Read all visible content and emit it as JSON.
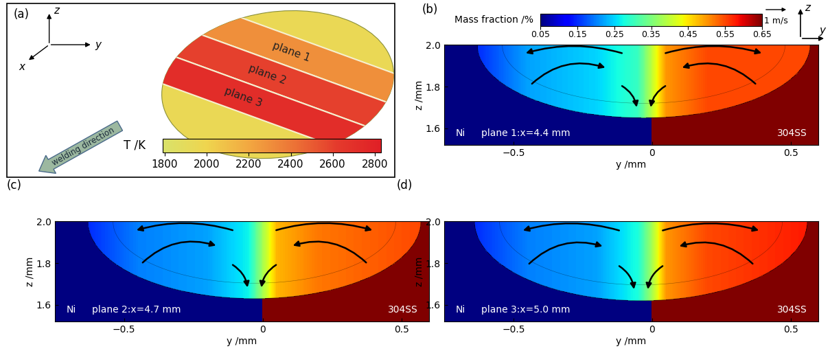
{
  "chart_data": [
    {
      "type": "render",
      "panel": "(a)",
      "axis_names": [
        "x",
        "y",
        "z"
      ],
      "surface_T": 1950,
      "planes": [
        {
          "name": "plane 1",
          "T": 2300
        },
        {
          "name": "plane 2",
          "T": 2600
        },
        {
          "name": "plane 3",
          "T": 2720
        }
      ],
      "annotation": "welding direction",
      "colorbar": {
        "label": "T /K",
        "range": [
          1790,
          2830
        ],
        "ticks": [
          1800,
          2000,
          2200,
          2400,
          2600,
          2800
        ]
      }
    },
    {
      "type": "field",
      "panel": "(b)",
      "left_label": "Ni",
      "section": "plane 1:x=4.4 mm",
      "right_label": "304SS",
      "xlabel": "y /mm",
      "ylabel": "z /mm",
      "xlim": [
        -0.75,
        0.6
      ],
      "ylim": [
        1.52,
        2.0
      ],
      "xticks": [
        {
          "value": -0.5,
          "label": "−0.5"
        },
        0,
        0.5
      ],
      "yticks": [
        1.6,
        1.8,
        2.0
      ],
      "axis_names": [
        "z",
        "y"
      ],
      "colorbar": {
        "label": "Mass fraction /%",
        "range": [
          0.05,
          0.65
        ],
        "ticks": [
          0.05,
          0.15,
          0.25,
          0.35,
          0.45,
          0.55,
          0.65
        ]
      },
      "reference_vector": {
        "label": "1 m/s",
        "value": 1
      },
      "base_values": [
        0.05,
        0.65
      ],
      "pool": {
        "y_left": -0.63,
        "y_right": 0.57,
        "z_bottom": 1.65
      },
      "profile": {
        "y": [
          -0.63,
          -0.45,
          -0.2,
          -0.05,
          0.0,
          0.05,
          0.2,
          0.57
        ],
        "values": [
          0.15,
          0.22,
          0.25,
          0.3,
          0.4,
          0.5,
          0.55,
          0.55
        ]
      }
    },
    {
      "type": "field",
      "panel": "(c)",
      "left_label": "Ni",
      "section": "plane 2:x=4.7 mm",
      "right_label": "304SS",
      "xlabel": "y /mm",
      "ylabel": "z /mm",
      "xlim": [
        -0.75,
        0.6
      ],
      "ylim": [
        1.52,
        2.0
      ],
      "xticks": [
        {
          "value": -0.5,
          "label": "−0.5"
        },
        0,
        0.5
      ],
      "yticks": [
        1.6,
        1.8,
        2.0
      ],
      "base_values": [
        0.05,
        0.65
      ],
      "pool": {
        "y_left": -0.63,
        "y_right": 0.57,
        "z_bottom": 1.63
      },
      "profile": {
        "y": [
          -0.63,
          -0.45,
          -0.2,
          -0.05,
          0.0,
          0.05,
          0.2,
          0.57
        ],
        "values": [
          0.15,
          0.2,
          0.22,
          0.27,
          0.38,
          0.48,
          0.52,
          0.55
        ]
      }
    },
    {
      "type": "field",
      "panel": "(d)",
      "left_label": "Ni",
      "section": "plane 3:x=5.0 mm",
      "right_label": "304SS",
      "xlabel": "y /mm",
      "ylabel": "z /mm",
      "xlim": [
        -0.75,
        0.6
      ],
      "ylim": [
        1.52,
        2.0
      ],
      "xticks": [
        {
          "value": -0.5,
          "label": "−0.5"
        },
        0,
        0.5
      ],
      "yticks": [
        1.6,
        1.8,
        2.0
      ],
      "base_values": [
        0.05,
        0.65
      ],
      "pool": {
        "y_left": -0.64,
        "y_right": 0.56,
        "z_bottom": 1.62
      },
      "profile": {
        "y": [
          -0.64,
          -0.45,
          -0.2,
          -0.05,
          0.0,
          0.05,
          0.2,
          0.56
        ],
        "values": [
          0.15,
          0.2,
          0.22,
          0.28,
          0.38,
          0.5,
          0.55,
          0.58
        ]
      }
    }
  ]
}
